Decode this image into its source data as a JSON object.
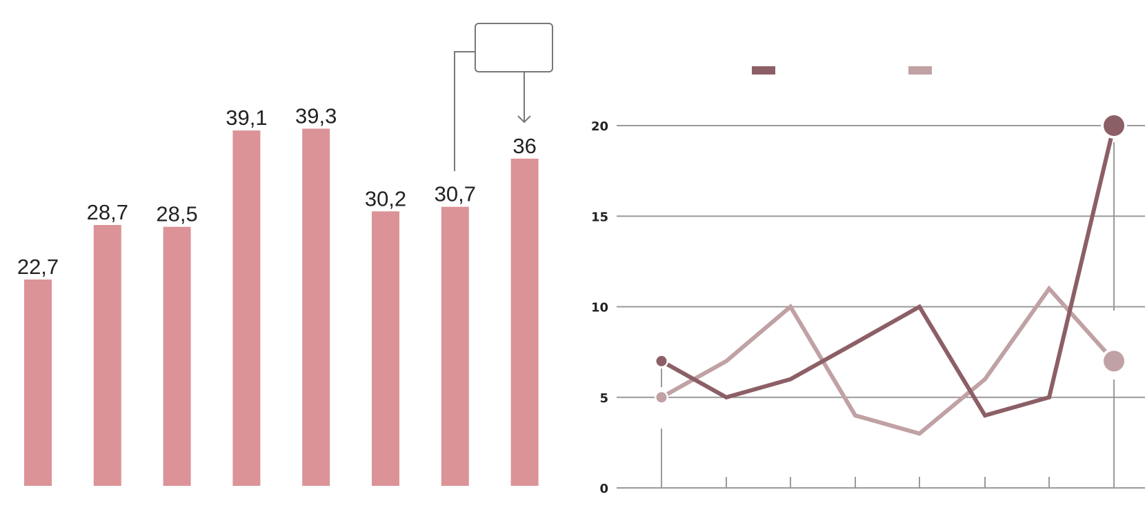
{
  "chart_data": [
    {
      "type": "bar",
      "categories": [
        "",
        "",
        "",
        "",
        "",
        "",
        "",
        ""
      ],
      "values": [
        22.7,
        28.7,
        28.5,
        39.1,
        39.3,
        30.2,
        30.7,
        36
      ],
      "labels": [
        "22,7",
        "28,7",
        "28,5",
        "39,1",
        "39,3",
        "30,2",
        "30,7",
        "36"
      ],
      "ylim": [
        0,
        40
      ],
      "grid": false,
      "colors": {
        "bar": "#db9397"
      },
      "annotation": {
        "type": "callout-box",
        "text": "",
        "points_to_index": 7
      }
    },
    {
      "type": "line",
      "x": [
        1,
        2,
        3,
        4,
        5,
        6,
        7,
        8
      ],
      "series": [
        {
          "values": [
            7,
            5,
            6,
            8,
            10,
            4,
            5,
            20
          ],
          "color": "#8c5f66"
        },
        {
          "values": [
            5,
            7,
            10,
            4,
            3,
            6,
            11,
            7
          ],
          "color": "#c0a1a4"
        }
      ],
      "yticks": [
        "0",
        "5",
        "10",
        "15",
        "20"
      ],
      "ylim": [
        0,
        20
      ],
      "grid": true,
      "legend": "top"
    }
  ]
}
